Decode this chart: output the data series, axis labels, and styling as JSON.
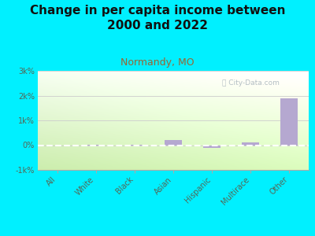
{
  "title": "Change in per capita income between\n2000 and 2022",
  "subtitle": "Normandy, MO",
  "categories": [
    "All",
    "White",
    "Black",
    "Asian",
    "Hispanic",
    "Multirace",
    "Other"
  ],
  "values": [
    0,
    10,
    20,
    220,
    -110,
    110,
    1900
  ],
  "bar_color": "#b5a8d0",
  "background_color": "#00f0ff",
  "title_fontsize": 11,
  "subtitle_fontsize": 9,
  "subtitle_color": "#996633",
  "title_color": "#111111",
  "ylim": [
    -1000,
    3000
  ],
  "yticks": [
    -1000,
    0,
    1000,
    2000,
    3000
  ],
  "ytick_labels": [
    "-1k%",
    "0%",
    "1k%",
    "2k%",
    "3k%"
  ],
  "watermark": "City-Data.com",
  "watermark_color": "#a8b4bc",
  "tick_label_color": "#556655",
  "plot_bg_color_top": "#f5fef0",
  "plot_bg_color_bottom": "#c8e8a8"
}
